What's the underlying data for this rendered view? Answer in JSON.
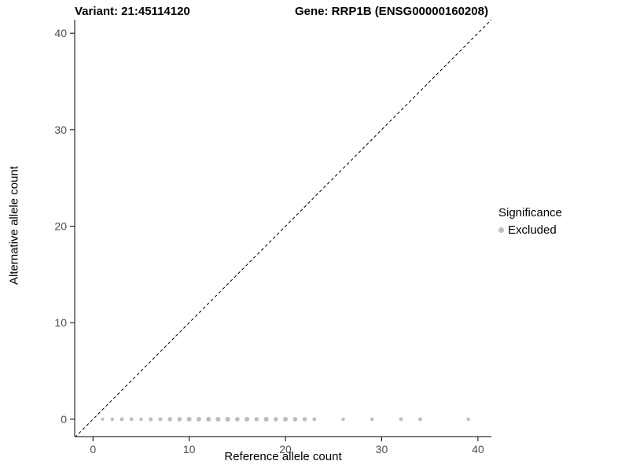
{
  "chart_data": {
    "type": "scatter",
    "title_left": "Variant: 21:45114120",
    "title_right": "Gene: RRP1B (ENSG00000160208)",
    "xlabel": "Reference allele count",
    "ylabel": "Alternative allele count",
    "xlim": [
      -1.9,
      41.4
    ],
    "ylim": [
      -1.8,
      41.4
    ],
    "xticks": [
      0,
      10,
      20,
      30,
      40
    ],
    "yticks": [
      0,
      10,
      20,
      30,
      40
    ],
    "grid": false,
    "axis_color": "#000000",
    "tick_label_color": "#4d4d4d",
    "reference_line": {
      "type": "identity",
      "style": "dashed",
      "color": "#000000"
    },
    "legend": {
      "title": "Significance",
      "position": "right",
      "entries": [
        {
          "label": "Excluded",
          "color": "#bdbdbd"
        }
      ]
    },
    "series": [
      {
        "name": "Excluded",
        "color": "#bdbdbd",
        "points": [
          {
            "x": 1,
            "y": 0,
            "r": 2.0
          },
          {
            "x": 2,
            "y": 0,
            "r": 2.2
          },
          {
            "x": 3,
            "y": 0,
            "r": 2.4
          },
          {
            "x": 4,
            "y": 0,
            "r": 2.4
          },
          {
            "x": 5,
            "y": 0,
            "r": 2.2
          },
          {
            "x": 6,
            "y": 0,
            "r": 2.6
          },
          {
            "x": 7,
            "y": 0,
            "r": 2.6
          },
          {
            "x": 8,
            "y": 0,
            "r": 2.8
          },
          {
            "x": 9,
            "y": 0,
            "r": 2.8
          },
          {
            "x": 10,
            "y": 0,
            "r": 3.0
          },
          {
            "x": 11,
            "y": 0,
            "r": 3.0
          },
          {
            "x": 12,
            "y": 0,
            "r": 3.0
          },
          {
            "x": 13,
            "y": 0,
            "r": 3.0
          },
          {
            "x": 14,
            "y": 0,
            "r": 3.0
          },
          {
            "x": 15,
            "y": 0,
            "r": 2.8
          },
          {
            "x": 16,
            "y": 0,
            "r": 3.0
          },
          {
            "x": 17,
            "y": 0,
            "r": 2.8
          },
          {
            "x": 18,
            "y": 0,
            "r": 3.0
          },
          {
            "x": 19,
            "y": 0,
            "r": 2.8
          },
          {
            "x": 20,
            "y": 0,
            "r": 3.0
          },
          {
            "x": 21,
            "y": 0,
            "r": 2.8
          },
          {
            "x": 22,
            "y": 0,
            "r": 2.8
          },
          {
            "x": 23,
            "y": 0,
            "r": 2.4
          },
          {
            "x": 26,
            "y": 0,
            "r": 2.2
          },
          {
            "x": 29,
            "y": 0,
            "r": 2.2
          },
          {
            "x": 32,
            "y": 0,
            "r": 2.4
          },
          {
            "x": 34,
            "y": 0,
            "r": 2.4
          },
          {
            "x": 39,
            "y": 0,
            "r": 2.2
          }
        ]
      }
    ]
  }
}
